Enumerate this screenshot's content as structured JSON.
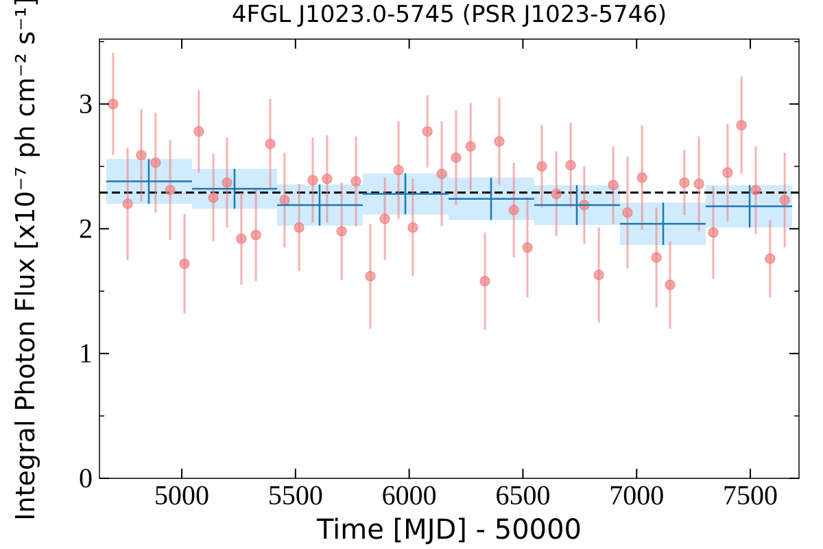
{
  "chart_data": {
    "type": "scatter",
    "title": "4FGL J1023.0-5745 (PSR J1023-5746)",
    "xlabel": "Time [MJD] - 50000",
    "ylabel": "Integral Photon Flux [x10⁻⁷ ph cm⁻² s⁻¹]",
    "xlim": [
      4638,
      7714
    ],
    "ylim": [
      0,
      3.52
    ],
    "xticks": [
      5000,
      5500,
      6000,
      6500,
      7000,
      7500
    ],
    "yticks": [
      0,
      1,
      2,
      3
    ],
    "yticks_minor": [
      0.5,
      1.5,
      2.5,
      3.5
    ],
    "points": {
      "color": "#f08080",
      "x": [
        4698,
        4762,
        4822,
        4885,
        4949,
        5012,
        5075,
        5139,
        5199,
        5262,
        5326,
        5389,
        5452,
        5516,
        5576,
        5639,
        5703,
        5766,
        5829,
        5893,
        5953,
        6016,
        6080,
        6143,
        6206,
        6270,
        6333,
        6396,
        6460,
        6520,
        6583,
        6647,
        6710,
        6770,
        6834,
        6897,
        6960,
        7024,
        7087,
        7147,
        7210,
        7274,
        7337,
        7400,
        7461,
        7524,
        7587,
        7651
      ],
      "values": [
        3.0,
        2.2,
        2.59,
        2.53,
        2.31,
        1.72,
        2.78,
        2.25,
        2.37,
        1.92,
        1.95,
        2.68,
        2.23,
        2.01,
        2.39,
        2.4,
        1.98,
        2.38,
        1.62,
        2.08,
        2.47,
        2.01,
        2.78,
        2.44,
        2.57,
        2.66,
        1.58,
        2.7,
        2.15,
        1.85,
        2.5,
        2.28,
        2.51,
        2.19,
        1.63,
        2.35,
        2.13,
        2.41,
        1.77,
        1.55,
        2.37,
        2.36,
        1.97,
        2.45,
        2.83,
        2.31,
        1.76,
        2.23
      ],
      "errors": [
        0.41,
        0.45,
        0.37,
        0.4,
        0.4,
        0.4,
        0.33,
        0.35,
        0.36,
        0.37,
        0.37,
        0.36,
        0.38,
        0.35,
        0.34,
        0.35,
        0.39,
        0.36,
        0.42,
        0.33,
        0.39,
        0.39,
        0.29,
        0.42,
        0.38,
        0.35,
        0.39,
        0.35,
        0.38,
        0.4,
        0.33,
        0.34,
        0.34,
        0.31,
        0.38,
        0.31,
        0.45,
        0.42,
        0.4,
        0.35,
        0.26,
        0.38,
        0.37,
        0.39,
        0.39,
        0.35,
        0.31,
        0.38
      ]
    },
    "bins": {
      "color": "#1f77b4",
      "band_color": "#87cefa",
      "x_start": [
        4668,
        5045,
        5419,
        5796,
        6173,
        6550,
        6927,
        7304
      ],
      "x_end": [
        5045,
        5419,
        5796,
        6173,
        6550,
        6927,
        7304,
        7684
      ],
      "x": [
        4855,
        5232,
        5606,
        5983,
        6360,
        6737,
        7117,
        7497
      ],
      "values": [
        2.38,
        2.32,
        2.19,
        2.28,
        2.24,
        2.19,
        2.04,
        2.18
      ],
      "errors": [
        0.18,
        0.16,
        0.165,
        0.165,
        0.17,
        0.16,
        0.17,
        0.17
      ]
    },
    "mean": 2.29
  }
}
